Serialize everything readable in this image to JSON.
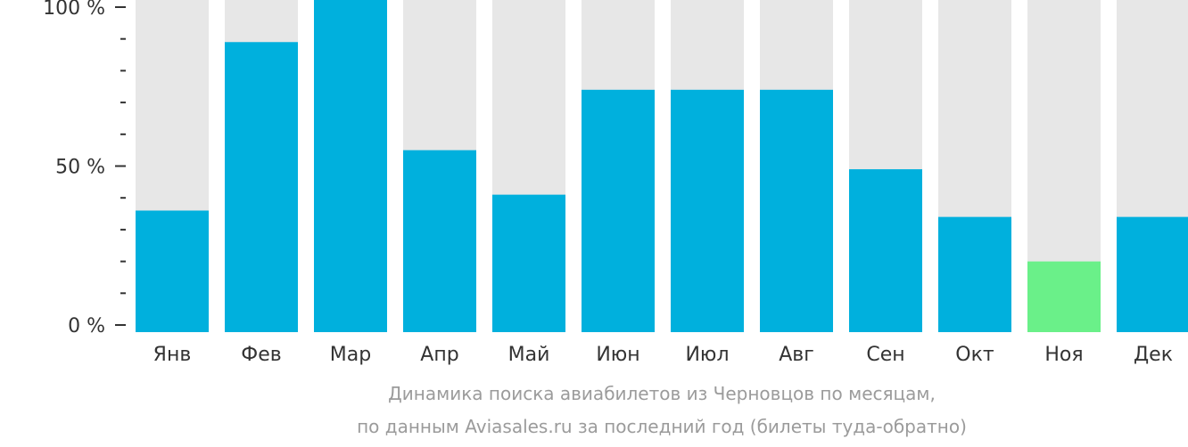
{
  "chart_data": {
    "type": "bar",
    "categories": [
      "Янв",
      "Фев",
      "Мар",
      "Апр",
      "Май",
      "Июн",
      "Июл",
      "Авг",
      "Сен",
      "Окт",
      "Ноя",
      "Дек"
    ],
    "values": [
      36,
      89,
      100,
      55,
      41,
      74,
      74,
      74,
      49,
      34,
      20,
      34
    ],
    "ylim": [
      0,
      100
    ],
    "y_ticks": [
      "0 %",
      "50 %",
      "100 %"
    ],
    "highlight_index": 10,
    "colors": {
      "bar": "#00b0dd",
      "highlight": "#6af089",
      "track": "#e7e7e7",
      "axis": "#333333",
      "tick_label": "#333333",
      "category_label": "#333333"
    },
    "caption_lines": [
      "Динамика поиска авиабилетов из Черновцов по месяцам,",
      "по данным Aviasales.ru за последний год (билеты туда-обратно)"
    ]
  }
}
